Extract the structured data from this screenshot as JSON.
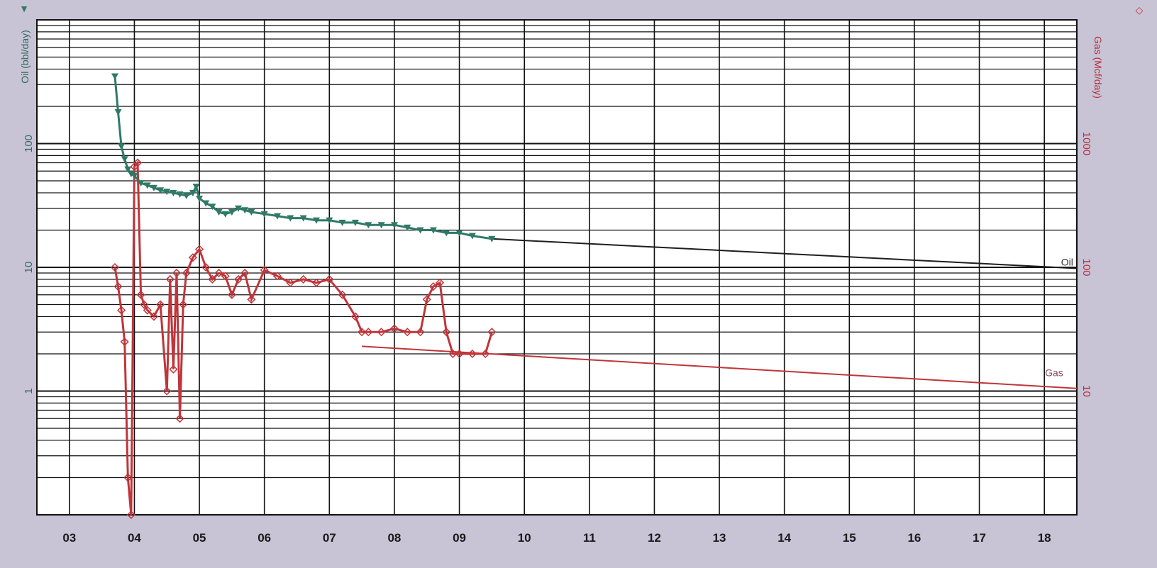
{
  "chart_data": {
    "type": "line",
    "title": "",
    "y_scale": "log",
    "left_axis": {
      "label": "Oil (bbl/day)",
      "marker": "▼",
      "color": "#2f7a66",
      "ylim": [
        0.1,
        1000
      ],
      "tick_labels": [
        {
          "v": 1,
          "t": "1"
        },
        {
          "v": 10,
          "t": "10"
        },
        {
          "v": 100,
          "t": "100"
        }
      ]
    },
    "right_axis": {
      "label": "Gas (Mcf/day)",
      "marker": "◇",
      "color": "#c0353a",
      "ylim": [
        1,
        10000
      ],
      "tick_labels": [
        {
          "v": 10,
          "t": "10"
        },
        {
          "v": 100,
          "t": "100"
        },
        {
          "v": 1000,
          "t": "1000"
        }
      ]
    },
    "x_axis": {
      "xlim": [
        2002.5,
        2018.5
      ],
      "tick_labels": [
        "03",
        "04",
        "05",
        "06",
        "07",
        "08",
        "09",
        "10",
        "11",
        "12",
        "13",
        "14",
        "15",
        "16",
        "17",
        "18"
      ]
    },
    "grid": true,
    "series": [
      {
        "name": "Oil",
        "axis": "left",
        "color": "#2f7a66",
        "marker": "triangle-down",
        "x": [
          2003.7,
          2003.75,
          2003.8,
          2003.85,
          2003.9,
          2003.95,
          2004.0,
          2004.1,
          2004.2,
          2004.3,
          2004.4,
          2004.5,
          2004.6,
          2004.7,
          2004.8,
          2004.9,
          2004.95,
          2005.0,
          2005.1,
          2005.2,
          2005.3,
          2005.4,
          2005.5,
          2005.6,
          2005.7,
          2005.8,
          2006.0,
          2006.2,
          2006.4,
          2006.6,
          2006.8,
          2007.0,
          2007.2,
          2007.4,
          2007.6,
          2007.8,
          2008.0,
          2008.2,
          2008.4,
          2008.6,
          2008.8,
          2009.0,
          2009.2,
          2009.5
        ],
        "values": [
          350,
          180,
          95,
          75,
          62,
          57,
          55,
          48,
          46,
          44,
          42,
          41,
          40,
          39,
          38,
          40,
          45,
          36,
          33,
          31,
          28,
          27,
          28,
          30,
          29,
          28,
          27,
          26,
          25,
          25,
          24,
          24,
          23,
          23,
          22,
          22,
          22,
          21,
          20,
          20,
          19,
          19,
          18,
          17
        ]
      },
      {
        "name": "Gas",
        "axis": "right",
        "color": "#c0353a",
        "marker": "diamond",
        "x": [
          2003.7,
          2003.75,
          2003.8,
          2003.85,
          2003.9,
          2003.95,
          2004.0,
          2004.05,
          2004.1,
          2004.15,
          2004.2,
          2004.3,
          2004.4,
          2004.5,
          2004.55,
          2004.6,
          2004.65,
          2004.7,
          2004.75,
          2004.8,
          2004.9,
          2005.0,
          2005.1,
          2005.2,
          2005.3,
          2005.4,
          2005.5,
          2005.6,
          2005.7,
          2005.8,
          2006.0,
          2006.2,
          2006.4,
          2006.6,
          2006.8,
          2007.0,
          2007.2,
          2007.4,
          2007.5,
          2007.6,
          2007.8,
          2008.0,
          2008.2,
          2008.4,
          2008.5,
          2008.6,
          2008.7,
          2008.8,
          2008.9,
          2009.0,
          2009.2,
          2009.4,
          2009.5
        ],
        "values": [
          100,
          70,
          45,
          25,
          2,
          1,
          650,
          700,
          60,
          50,
          45,
          40,
          50,
          10,
          80,
          15,
          90,
          6,
          50,
          90,
          120,
          140,
          100,
          80,
          90,
          85,
          60,
          80,
          90,
          55,
          95,
          85,
          75,
          80,
          75,
          80,
          60,
          40,
          30,
          30,
          30,
          32,
          30,
          30,
          55,
          70,
          75,
          30,
          20,
          20,
          20,
          20,
          30
        ]
      },
      {
        "name": "Oil",
        "axis": "left",
        "color": "#1e1e1e",
        "marker": "none",
        "forecast": true,
        "x": [
          2009.5,
          2018.5
        ],
        "values": [
          17,
          9.8
        ]
      },
      {
        "name": "Gas",
        "axis": "right",
        "color": "#c0353a",
        "marker": "none",
        "forecast": true,
        "x": [
          2007.5,
          2018.5
        ],
        "values": [
          23,
          10.5
        ]
      }
    ],
    "annotations": [
      {
        "text": "Oil",
        "x": 2018.35,
        "v": 9.8,
        "axis": "left",
        "color": "#333333"
      },
      {
        "text": "Gas",
        "x": 2018.15,
        "v": 12.5,
        "axis": "right",
        "color": "#8a4a55"
      }
    ]
  }
}
